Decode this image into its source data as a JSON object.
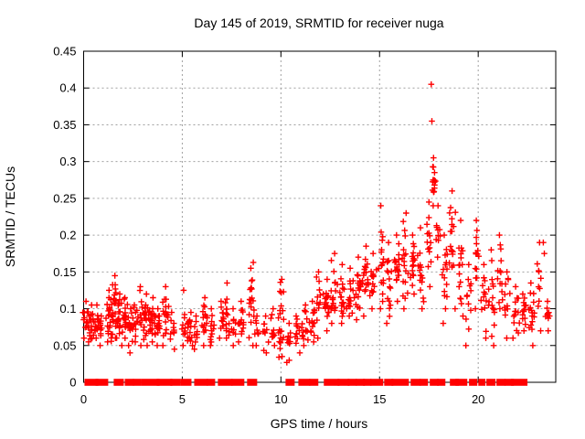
{
  "chart_data": {
    "type": "scatter",
    "title": "Day 145 of 2019, SRMTID for receiver nuga",
    "xlabel": "GPS time / hours",
    "ylabel": "SRMTID / TECUs",
    "xlim": [
      0,
      23.93
    ],
    "ylim": [
      0,
      0.45
    ],
    "xticks": [
      0,
      5,
      10,
      15,
      20
    ],
    "xtick_labels": [
      "0",
      "5",
      "10",
      "15",
      "20"
    ],
    "yticks": [
      0,
      0.05,
      0.1,
      0.15,
      0.2,
      0.25,
      0.3,
      0.35,
      0.4,
      0.45
    ],
    "ytick_labels": [
      "0",
      "0.05",
      "0.1",
      "0.15",
      "0.2",
      "0.25",
      "0.3",
      "0.35",
      "0.4",
      "0.45"
    ],
    "grid": true,
    "legend": "none",
    "marker": "plus",
    "marker_color": "#ff0000",
    "grid_color": "#a0a0a0",
    "frame_color": "#000000",
    "series_name": "SRMTID",
    "cluster_format": [
      "center_hour",
      "half_width_hours",
      "count",
      "y_min",
      "y_max"
    ],
    "clusters": [
      [
        0.1,
        0.15,
        12,
        0.06,
        0.11
      ],
      [
        0.35,
        0.25,
        22,
        0.055,
        0.105
      ],
      [
        0.7,
        0.2,
        16,
        0.06,
        0.105
      ],
      [
        0.9,
        0.1,
        8,
        0.05,
        0.09
      ],
      [
        1.3,
        0.2,
        25,
        0.055,
        0.125
      ],
      [
        1.55,
        0.15,
        20,
        0.06,
        0.145
      ],
      [
        1.8,
        0.2,
        22,
        0.05,
        0.12
      ],
      [
        2.1,
        0.15,
        18,
        0.06,
        0.115
      ],
      [
        2.35,
        0.15,
        15,
        0.05,
        0.1
      ],
      [
        2.6,
        0.15,
        14,
        0.055,
        0.105
      ],
      [
        2.9,
        0.15,
        12,
        0.05,
        0.13
      ],
      [
        3.2,
        0.2,
        20,
        0.05,
        0.12
      ],
      [
        3.5,
        0.2,
        22,
        0.055,
        0.115
      ],
      [
        3.8,
        0.15,
        14,
        0.05,
        0.1
      ],
      [
        4.15,
        0.2,
        20,
        0.05,
        0.13
      ],
      [
        4.5,
        0.15,
        10,
        0.045,
        0.095
      ],
      [
        5.1,
        0.15,
        10,
        0.05,
        0.125
      ],
      [
        5.4,
        0.2,
        16,
        0.05,
        0.095
      ],
      [
        5.7,
        0.15,
        10,
        0.045,
        0.09
      ],
      [
        6.15,
        0.2,
        16,
        0.05,
        0.115
      ],
      [
        6.5,
        0.15,
        12,
        0.05,
        0.1
      ],
      [
        7.0,
        0.15,
        12,
        0.06,
        0.11
      ],
      [
        7.25,
        0.15,
        14,
        0.06,
        0.135
      ],
      [
        7.6,
        0.15,
        10,
        0.05,
        0.1
      ],
      [
        8.0,
        0.2,
        14,
        0.055,
        0.11
      ],
      [
        8.5,
        0.2,
        20,
        0.05,
        0.155
      ],
      [
        8.8,
        0.1,
        8,
        0.05,
        0.09
      ],
      [
        9.2,
        0.2,
        12,
        0.04,
        0.09
      ],
      [
        9.6,
        0.15,
        10,
        0.05,
        0.1
      ],
      [
        10.0,
        0.2,
        22,
        0.035,
        0.14
      ],
      [
        10.4,
        0.15,
        10,
        0.03,
        0.08
      ],
      [
        10.8,
        0.2,
        12,
        0.04,
        0.09
      ],
      [
        11.2,
        0.2,
        16,
        0.05,
        0.105
      ],
      [
        11.6,
        0.2,
        14,
        0.055,
        0.11
      ],
      [
        11.9,
        0.15,
        12,
        0.06,
        0.15
      ],
      [
        12.3,
        0.2,
        18,
        0.07,
        0.14
      ],
      [
        12.7,
        0.2,
        20,
        0.08,
        0.175
      ],
      [
        13.1,
        0.2,
        18,
        0.08,
        0.16
      ],
      [
        13.5,
        0.2,
        16,
        0.09,
        0.155
      ],
      [
        13.9,
        0.2,
        18,
        0.085,
        0.17
      ],
      [
        14.3,
        0.2,
        18,
        0.09,
        0.185
      ],
      [
        14.7,
        0.2,
        16,
        0.1,
        0.175
      ],
      [
        15.1,
        0.2,
        18,
        0.1,
        0.24
      ],
      [
        15.5,
        0.2,
        16,
        0.08,
        0.19
      ],
      [
        15.9,
        0.2,
        18,
        0.11,
        0.2
      ],
      [
        16.3,
        0.2,
        18,
        0.1,
        0.23
      ],
      [
        16.7,
        0.2,
        16,
        0.12,
        0.2
      ],
      [
        17.1,
        0.2,
        16,
        0.1,
        0.21
      ],
      [
        17.5,
        0.15,
        14,
        0.13,
        0.245
      ],
      [
        17.75,
        0.12,
        16,
        0.24,
        0.305
      ],
      [
        17.95,
        0.15,
        10,
        0.17,
        0.24
      ],
      [
        18.3,
        0.2,
        16,
        0.08,
        0.2
      ],
      [
        18.7,
        0.2,
        18,
        0.1,
        0.26
      ],
      [
        19.1,
        0.2,
        16,
        0.09,
        0.22
      ],
      [
        19.5,
        0.2,
        12,
        0.05,
        0.16
      ],
      [
        19.9,
        0.2,
        14,
        0.1,
        0.22
      ],
      [
        20.3,
        0.2,
        14,
        0.06,
        0.16
      ],
      [
        20.7,
        0.2,
        16,
        0.05,
        0.18
      ],
      [
        21.1,
        0.2,
        14,
        0.1,
        0.2
      ],
      [
        21.5,
        0.2,
        12,
        0.06,
        0.15
      ],
      [
        21.9,
        0.2,
        14,
        0.06,
        0.13
      ],
      [
        22.3,
        0.2,
        14,
        0.07,
        0.12
      ],
      [
        22.7,
        0.2,
        16,
        0.05,
        0.135
      ],
      [
        23.1,
        0.15,
        10,
        0.07,
        0.19
      ],
      [
        23.5,
        0.15,
        10,
        0.07,
        0.11
      ]
    ],
    "outliers": [
      [
        17.62,
        0.405
      ],
      [
        17.65,
        0.355
      ],
      [
        10.3,
        0.027
      ],
      [
        9.9,
        0.034
      ],
      [
        2.35,
        0.04
      ],
      [
        8.6,
        0.163
      ],
      [
        23.3,
        0.19
      ],
      [
        23.35,
        0.175
      ]
    ],
    "zero_segments": [
      [
        0.16,
        0.63
      ],
      [
        0.72,
        1.13
      ],
      [
        1.64,
        1.92
      ],
      [
        2.2,
        2.43
      ],
      [
        2.62,
        2.8
      ],
      [
        3.03,
        3.73
      ],
      [
        3.82,
        4.38
      ],
      [
        4.51,
        4.79
      ],
      [
        5.02,
        5.35
      ],
      [
        5.72,
        6.18
      ],
      [
        6.36,
        6.55
      ],
      [
        6.92,
        7.43
      ],
      [
        7.61,
        8.03
      ],
      [
        8.4,
        8.68
      ],
      [
        10.35,
        10.58
      ],
      [
        11.0,
        11.37
      ],
      [
        11.55,
        11.78
      ],
      [
        12.29,
        12.85
      ],
      [
        12.99,
        13.36
      ],
      [
        13.5,
        13.73
      ],
      [
        13.91,
        14.14
      ],
      [
        14.28,
        14.47
      ],
      [
        14.65,
        15.07
      ],
      [
        15.35,
        15.58
      ],
      [
        15.72,
        16.37
      ],
      [
        16.69,
        16.97
      ],
      [
        17.15,
        17.34
      ],
      [
        17.66,
        17.89
      ],
      [
        18.03,
        18.22
      ],
      [
        18.68,
        18.91
      ],
      [
        18.96,
        19.33
      ],
      [
        19.65,
        19.84
      ],
      [
        20.12,
        20.25
      ],
      [
        20.53,
        20.76
      ],
      [
        21.04,
        21.27
      ],
      [
        21.46,
        21.69
      ],
      [
        21.78,
        22.38
      ]
    ]
  }
}
